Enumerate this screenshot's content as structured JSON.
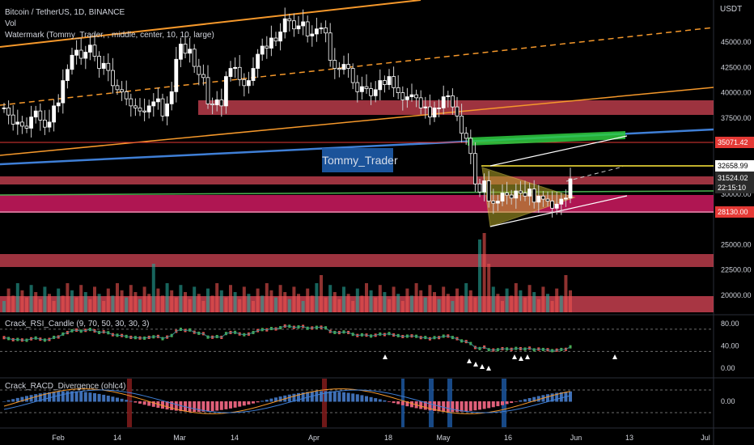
{
  "header": {
    "symbol_line": "Bitcoin / TetherUS, 1D, BINANCE",
    "vol_label": "Vol",
    "watermark_line": "Watermark (Tommy_Trader, , middle, center, 10, 10, large)",
    "watermark_text": "Tommy_Trader",
    "currency": "USDT"
  },
  "price_axis": {
    "ticks": [
      "45000.00",
      "42500.00",
      "40000.00",
      "37500.00",
      "30000.00",
      "25000.00",
      "22500.00",
      "20000.00"
    ]
  },
  "price_tags": {
    "top_line": "35071.42",
    "yellow_line": "32658.99",
    "last_price": "31524.02",
    "countdown": "22:15:10",
    "support_line": "28130.00"
  },
  "rsi_panel": {
    "title": "Crack_RSI_Candle (9, 70, 50, 30, 30, 3)",
    "ticks": [
      "80.00",
      "40.00",
      "0.00"
    ]
  },
  "racd_panel": {
    "title": "Crack_RACD_Divergence (ohlc4)",
    "ticks": [
      "0.00"
    ]
  },
  "time_axis": {
    "labels": [
      "Feb",
      "14",
      "Mar",
      "14",
      "Apr",
      "18",
      "May",
      "16",
      "Jun",
      "13",
      "Jul"
    ]
  },
  "colors": {
    "bg": "#000000",
    "candle_up": "#ffffff",
    "candle_down": "#ffffff",
    "red_zone": "#e0485a",
    "magenta_zone": "#c2185b",
    "green_zone": "#2ecc40",
    "blue_trend": "#3f7fd6",
    "orange_trend": "#f5982b",
    "yellow_line": "#ffeb3b",
    "tag_red": "#e53935",
    "tag_white": "#ffffff"
  },
  "chart_data": {
    "type": "candlestick",
    "title": "Bitcoin / TetherUS, 1D, BINANCE",
    "ylabel": "USDT",
    "ylim": [
      17500,
      47500
    ],
    "x_labels": [
      "Feb",
      "14",
      "Mar",
      "14",
      "Apr",
      "18",
      "May",
      "16",
      "Jun",
      "13",
      "Jul"
    ],
    "series_close": [
      38500,
      37800,
      36900,
      37100,
      36700,
      36500,
      37600,
      38200,
      37300,
      36600,
      37100,
      38700,
      39000,
      41200,
      42300,
      43700,
      44200,
      43400,
      44000,
      44700,
      43600,
      42400,
      42900,
      42200,
      40700,
      40300,
      40100,
      39400,
      38700,
      38500,
      38200,
      38100,
      38700,
      39100,
      39400,
      37700,
      38900,
      40100,
      43300,
      44800,
      43900,
      44300,
      42600,
      41800,
      41500,
      38900,
      38800,
      39300,
      38700,
      41600,
      42400,
      42500,
      41300,
      40700,
      41200,
      42400,
      43800,
      44600,
      44400,
      45400,
      45100,
      46000,
      47300,
      47100,
      46300,
      46600,
      47000,
      45600,
      45800,
      46300,
      46400,
      45900,
      43200,
      42400,
      42300,
      42800,
      42400,
      41000,
      40100,
      40600,
      40400,
      39700,
      40300,
      41200,
      40800,
      41600,
      40500,
      40000,
      39300,
      39600,
      39800,
      39500,
      38500,
      38600,
      37600,
      38500,
      38500,
      39600,
      39700,
      38600,
      37700,
      36000,
      35500,
      34000,
      31000,
      30200,
      31300,
      29300,
      29100,
      29300,
      30100,
      29900,
      29600,
      30300,
      30100,
      29800,
      30500,
      29200,
      29800,
      29500,
      29300,
      28600,
      29000,
      29500,
      29600,
      31500
    ]
  }
}
